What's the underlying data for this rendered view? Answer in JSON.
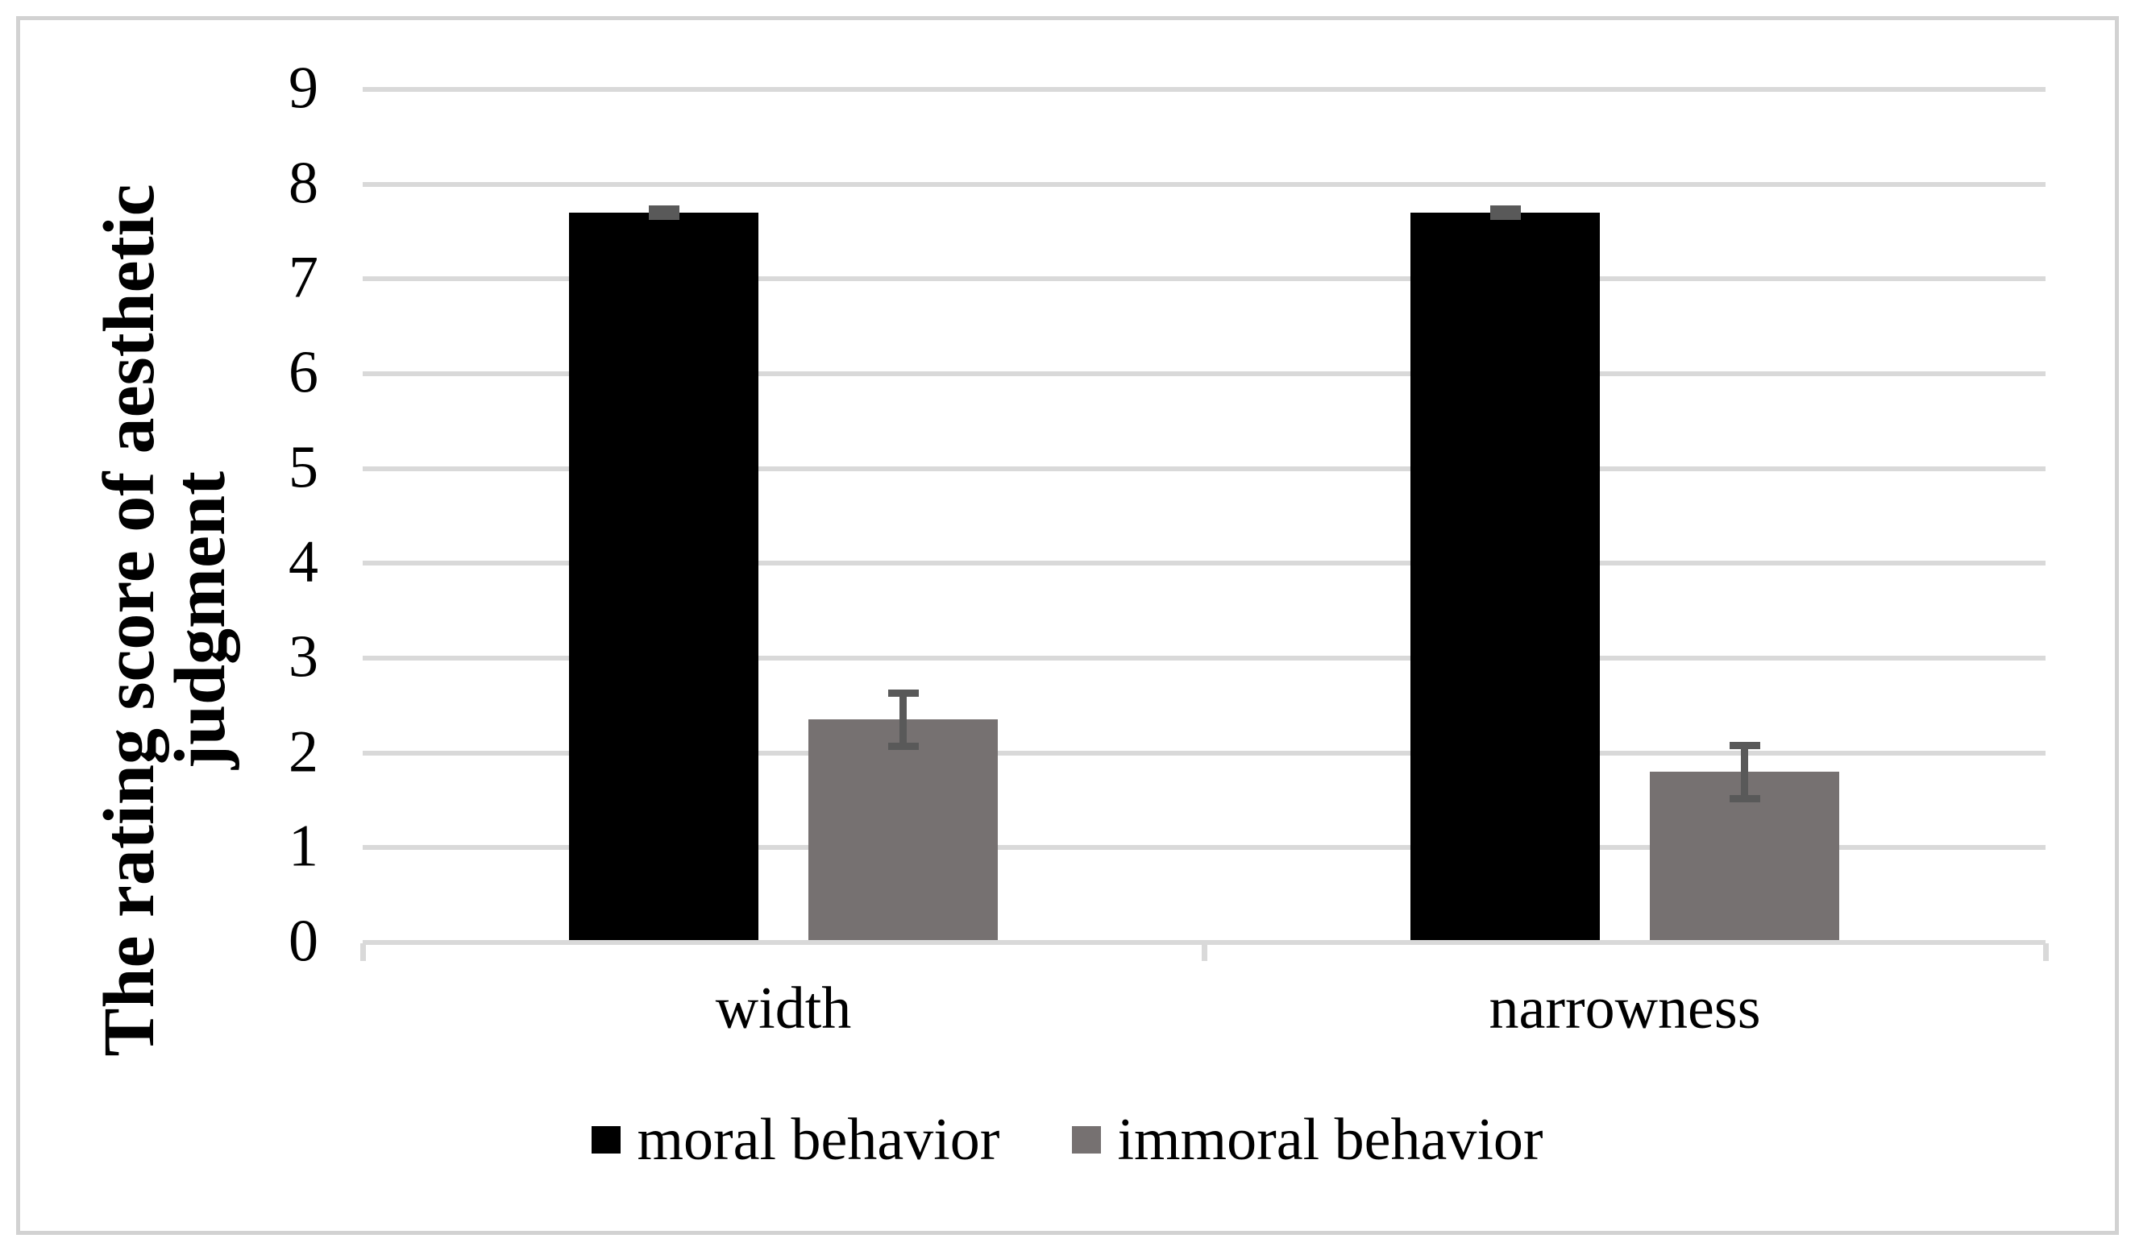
{
  "chart_data": {
    "type": "bar",
    "title": "",
    "categories": [
      "width",
      "narrowness"
    ],
    "series": [
      {
        "name": "moral behavior",
        "color": "#000000",
        "values": [
          7.7,
          7.7
        ],
        "errors": [
          0.04,
          0.04
        ]
      },
      {
        "name": "immoral behavior",
        "color": "#767171",
        "values": [
          2.35,
          1.8
        ],
        "errors": [
          0.28,
          0.28
        ]
      }
    ],
    "ylabel": "The rating score of aesthetic judgment",
    "ylabel_lines": [
      "The rating score of aesthetic",
      "judgment"
    ],
    "yticks": [
      0,
      1,
      2,
      3,
      4,
      5,
      6,
      7,
      8,
      9
    ],
    "ylim": [
      0,
      9
    ],
    "grid": true,
    "legend_position": "bottom",
    "colors": {
      "error_bar": "#595959",
      "gridline": "#d9d9d9",
      "axis_line": "#d9d9d9",
      "frame_border": "#d2d2d2",
      "text": "#000000",
      "background": "#ffffff"
    }
  }
}
